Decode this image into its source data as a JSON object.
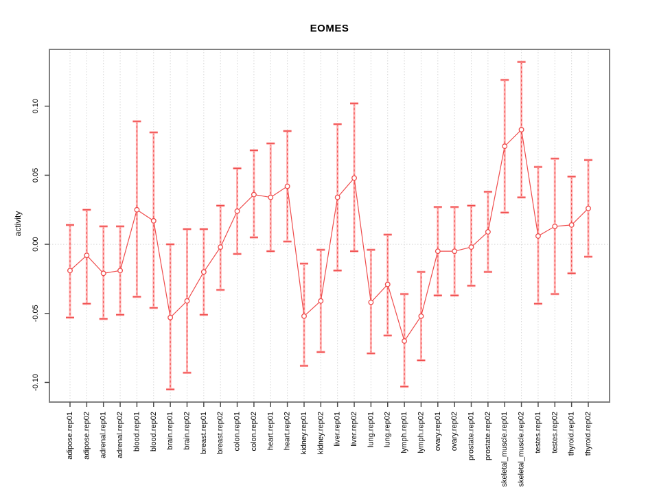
{
  "page": {
    "background": "#ffffff"
  },
  "chart_data": {
    "type": "line",
    "subtype": "points-with-error-bars",
    "title": "EOMES",
    "xlabel": "",
    "ylabel": "activity",
    "legend_position": "none",
    "marker": "open-circle",
    "categories": [
      "adipose.rep01",
      "adipose.rep02",
      "adrenal.rep01",
      "adrenal.rep02",
      "blood.rep01",
      "blood.rep02",
      "brain.rep01",
      "brain.rep02",
      "breast.rep01",
      "breast.rep02",
      "colon.rep01",
      "colon.rep02",
      "heart.rep01",
      "heart.rep02",
      "kidney.rep01",
      "kidney.rep02",
      "liver.rep01",
      "liver.rep02",
      "lung.rep01",
      "lung.rep02",
      "lymph.rep01",
      "lymph.rep02",
      "ovary.rep01",
      "ovary.rep02",
      "prostate.rep01",
      "prostate.rep02",
      "skeletal_muscle.rep01",
      "skeletal_muscle.rep02",
      "testes.rep01",
      "testes.rep02",
      "thyroid.rep01",
      "thyroid.rep02"
    ],
    "series": [
      {
        "name": "activity",
        "values": [
          -0.019,
          -0.008,
          -0.021,
          -0.019,
          0.025,
          0.017,
          -0.053,
          -0.041,
          -0.02,
          -0.002,
          0.024,
          0.036,
          0.034,
          0.042,
          -0.052,
          -0.041,
          0.034,
          0.048,
          -0.042,
          -0.029,
          -0.07,
          -0.052,
          -0.005,
          -0.005,
          -0.002,
          0.009,
          0.071,
          0.083,
          0.006,
          0.013,
          0.014,
          0.026
        ],
        "error_high": [
          0.014,
          0.025,
          0.013,
          0.013,
          0.089,
          0.081,
          0.0,
          0.011,
          0.011,
          0.028,
          0.055,
          0.068,
          0.073,
          0.082,
          -0.014,
          -0.004,
          0.087,
          0.102,
          -0.004,
          0.007,
          -0.036,
          -0.02,
          0.027,
          0.027,
          0.028,
          0.038,
          0.119,
          0.132,
          0.056,
          0.062,
          0.049,
          0.061
        ],
        "error_low": [
          -0.053,
          -0.043,
          -0.054,
          -0.051,
          -0.038,
          -0.046,
          -0.105,
          -0.093,
          -0.051,
          -0.033,
          -0.007,
          0.005,
          -0.005,
          0.002,
          -0.088,
          -0.078,
          -0.019,
          -0.005,
          -0.079,
          -0.066,
          -0.103,
          -0.084,
          -0.037,
          -0.037,
          -0.03,
          -0.02,
          0.023,
          0.034,
          -0.043,
          -0.036,
          -0.021,
          -0.009
        ]
      }
    ],
    "ylim": [
      -0.1142,
      0.1411
    ],
    "yticks": [
      0.1,
      0.05,
      0.0,
      -0.05,
      -0.1
    ],
    "ytick_labels": [
      "0.10",
      "0.05",
      "0.00",
      "-0.05",
      "-0.10"
    ],
    "grid": {
      "vertical_category_lines": true,
      "horizontal_zero_line": true,
      "style": "dotted"
    },
    "colors": {
      "series_red": "#ef4b4b",
      "error_bar_pink": "#ffb2b2",
      "grid_gray": "#d6d6d6",
      "frame_gray": "#7f7f7f",
      "tick_gray": "#4d4d4d",
      "text_black": "#000000",
      "background": "#ffffff"
    }
  }
}
